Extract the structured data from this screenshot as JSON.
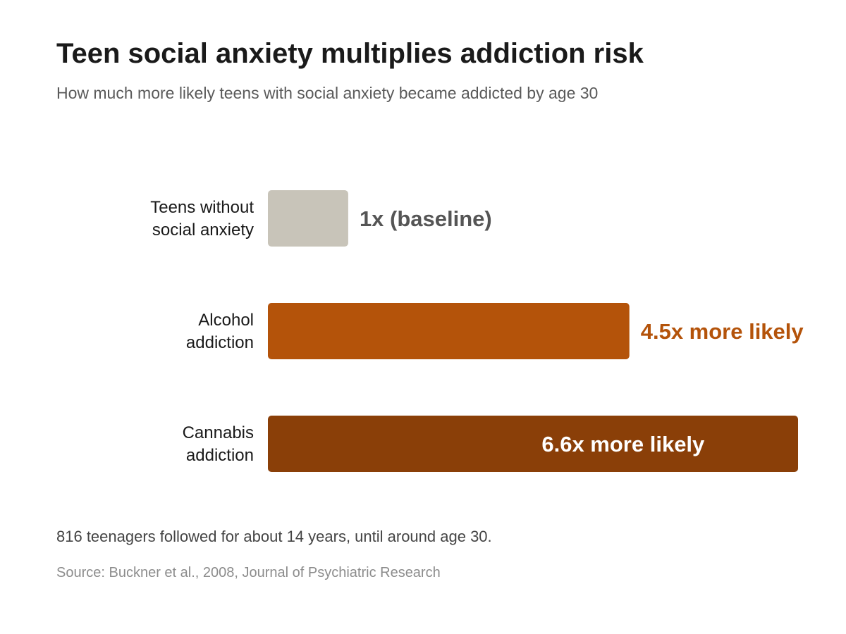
{
  "chart_data": {
    "type": "bar",
    "orientation": "horizontal",
    "title": "Teen social anxiety multiplies addiction risk",
    "subtitle": "How much more likely teens with social anxiety became addicted by age 30",
    "categories": [
      [
        "Teens without",
        "social anxiety"
      ],
      [
        "Alcohol",
        "addiction"
      ],
      [
        "Cannabis",
        "addiction"
      ]
    ],
    "values": [
      1,
      4.5,
      6.6
    ],
    "value_labels": [
      "1x (baseline)",
      "4.5x more likely",
      "6.6x more likely"
    ],
    "bar_colors": [
      "#c8c4b9",
      "#b4530a",
      "#8a3f08"
    ],
    "value_label_colors": [
      "#555555",
      "#b4530a",
      "#ffffff"
    ],
    "value_label_inside": [
      false,
      false,
      true
    ],
    "xlim": [
      0,
      6.6
    ],
    "grid": false,
    "legend": "none",
    "note": "816 teenagers followed for about 14 years, until around age 30.",
    "source": "Source: Buckner et al., 2008, Journal of Psychiatric Research"
  }
}
